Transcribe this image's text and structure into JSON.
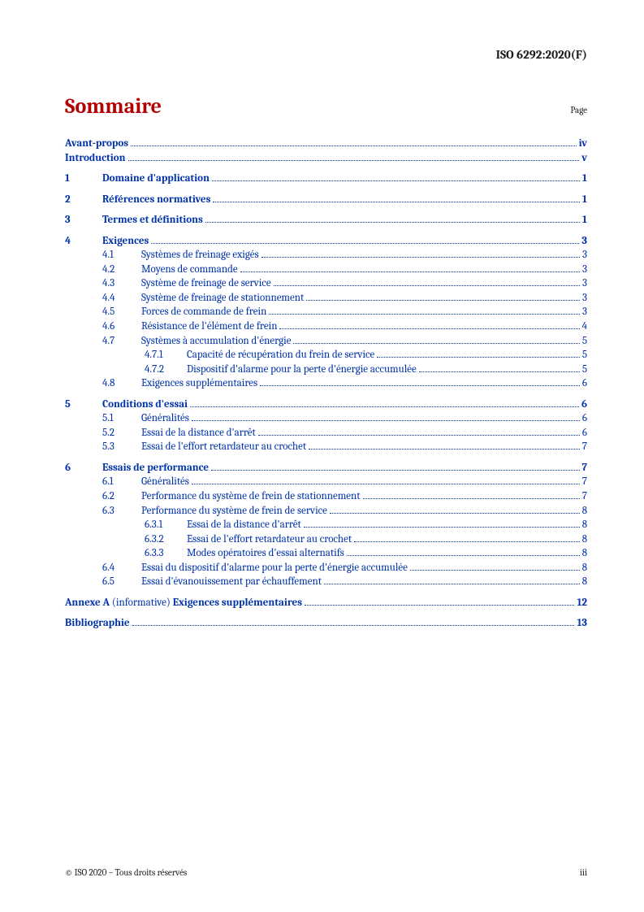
{
  "doc_id": "ISO 6292:2020(F)",
  "title": "Sommaire",
  "page_label": "Page",
  "link_color": "#0033aa",
  "title_color": "#b30000",
  "text_color": "#1a1a1a",
  "background_color": "#ffffff",
  "font_family": "Cambria",
  "title_fontsize_pt": 20,
  "body_fontsize_pt": 10,
  "front": [
    {
      "label": "Avant-propos",
      "page": "iv"
    },
    {
      "label": "Introduction",
      "page": "v"
    }
  ],
  "sections": [
    {
      "num": "1",
      "label": "Domaine d'application",
      "page": "1"
    },
    {
      "num": "2",
      "label": "Références normatives",
      "page": "1"
    },
    {
      "num": "3",
      "label": "Termes et définitions",
      "page": "1"
    },
    {
      "num": "4",
      "label": "Exigences",
      "page": "3",
      "subs": [
        {
          "num": "4.1",
          "label": "Systèmes de freinage exigés",
          "page": "3"
        },
        {
          "num": "4.2",
          "label": "Moyens de commande",
          "page": "3"
        },
        {
          "num": "4.3",
          "label": "Système de freinage de service",
          "page": "3"
        },
        {
          "num": "4.4",
          "label": "Système de freinage de stationnement",
          "page": "3"
        },
        {
          "num": "4.5",
          "label": "Forces de commande de frein",
          "page": "3"
        },
        {
          "num": "4.6",
          "label": "Résistance de l'élément de frein",
          "page": "4"
        },
        {
          "num": "4.7",
          "label": "Systèmes à accumulation d'énergie",
          "page": "5",
          "subs": [
            {
              "num": "4.7.1",
              "label": "Capacité de récupération du frein de service",
              "page": "5"
            },
            {
              "num": "4.7.2",
              "label": "Dispositif d'alarme pour la perte d'énergie accumulée",
              "page": "5"
            }
          ]
        },
        {
          "num": "4.8",
          "label": "Exigences supplémentaires",
          "page": "6"
        }
      ]
    },
    {
      "num": "5",
      "label": "Conditions d'essai",
      "page": "6",
      "subs": [
        {
          "num": "5.1",
          "label": "Généralités",
          "page": "6"
        },
        {
          "num": "5.2",
          "label": "Essai de la distance d'arrêt",
          "page": "6"
        },
        {
          "num": "5.3",
          "label": "Essai de l'effort retardateur au crochet",
          "page": "7"
        }
      ]
    },
    {
      "num": "6",
      "label": "Essais de performance",
      "page": "7",
      "subs": [
        {
          "num": "6.1",
          "label": "Généralités",
          "page": "7"
        },
        {
          "num": "6.2",
          "label": "Performance du système de frein de stationnement",
          "page": "7"
        },
        {
          "num": "6.3",
          "label": "Performance du système de frein de service",
          "page": "8",
          "subs": [
            {
              "num": "6.3.1",
              "label": "Essai de la distance d'arrêt",
              "page": "8"
            },
            {
              "num": "6.3.2",
              "label": "Essai de l'effort retardateur au crochet",
              "page": "8"
            },
            {
              "num": "6.3.3",
              "label": "Modes opératoires d'essai alternatifs",
              "page": "8"
            }
          ]
        },
        {
          "num": "6.4",
          "label": "Essai du dispositif d'alarme pour la perte d'énergie accumulée",
          "page": "8"
        },
        {
          "num": "6.5",
          "label": "Essai d'évanouissement par échauffement",
          "page": "8"
        }
      ]
    }
  ],
  "annex": {
    "prefix": "Annexe A",
    "note": "(informative)",
    "label": "Exigences supplémentaires",
    "page": "12"
  },
  "biblio": {
    "label": "Bibliographie",
    "page": "13"
  },
  "footer": {
    "left": "© ISO 2020 – Tous droits réservés",
    "right": "iii"
  }
}
